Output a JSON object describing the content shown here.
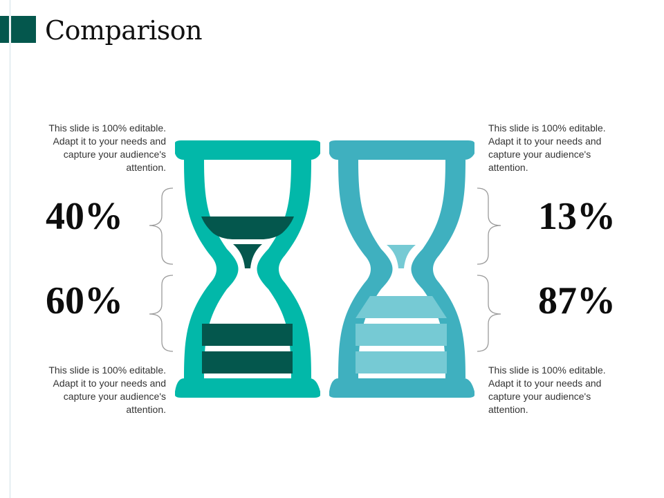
{
  "title": "Comparison",
  "colors": {
    "accent_dark": "#04574d",
    "glass_left": "#02b8a9",
    "sand_left": "#04574d",
    "glass_right": "#3fb0bf",
    "sand_right": "#76cad4"
  },
  "left": {
    "top_text": "This slide is 100% editable. Adapt it to your needs and capture your audience's attention.",
    "top_value": "40%",
    "bottom_value": "60%",
    "bottom_text": "This slide is 100% editable. Adapt it to your needs and capture your audience's attention."
  },
  "right": {
    "top_text": "This slide is 100% editable. Adapt it to your needs and capture your audience's attention.",
    "top_value": "13%",
    "bottom_value": "87%",
    "bottom_text": "This slide is 100% editable. Adapt it to your needs and capture your audience's attention."
  }
}
